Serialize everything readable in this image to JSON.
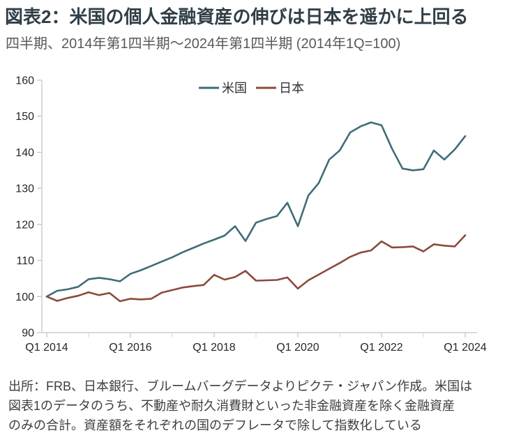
{
  "header": {
    "title": "図表2：米国の個人金融資産の伸びは日本を遥かに上回る",
    "subtitle": "四半期、2014年第1四半期～2024年第1四半期 (2014年1Q=100)"
  },
  "chart_data": {
    "type": "line",
    "title": "",
    "xlabel": "",
    "ylabel": "",
    "ylim": [
      90,
      160
    ],
    "y_ticks": [
      90,
      100,
      110,
      120,
      130,
      140,
      150,
      160
    ],
    "grid": false,
    "legend_position": "top-center",
    "x_quarters": [
      "2014Q1",
      "2014Q2",
      "2014Q3",
      "2014Q4",
      "2015Q1",
      "2015Q2",
      "2015Q3",
      "2015Q4",
      "2016Q1",
      "2016Q2",
      "2016Q3",
      "2016Q4",
      "2017Q1",
      "2017Q2",
      "2017Q3",
      "2017Q4",
      "2018Q1",
      "2018Q2",
      "2018Q3",
      "2018Q4",
      "2019Q1",
      "2019Q2",
      "2019Q3",
      "2019Q4",
      "2020Q1",
      "2020Q2",
      "2020Q3",
      "2020Q4",
      "2021Q1",
      "2021Q2",
      "2021Q3",
      "2021Q4",
      "2022Q1",
      "2022Q2",
      "2022Q3",
      "2022Q4",
      "2023Q1",
      "2023Q2",
      "2023Q3",
      "2023Q4",
      "2024Q1"
    ],
    "x_ticks": [
      {
        "index": 0,
        "label": "Q1 2014"
      },
      {
        "index": 8,
        "label": "Q1 2016"
      },
      {
        "index": 16,
        "label": "Q1 2018"
      },
      {
        "index": 24,
        "label": "Q1 2020"
      },
      {
        "index": 32,
        "label": "Q1 2022"
      },
      {
        "index": 40,
        "label": "Q1 2024"
      }
    ],
    "x_minor_tick_indices": [
      4,
      12,
      20,
      28,
      36
    ],
    "series": [
      {
        "name": "米国",
        "color": "#3f6c77",
        "values": [
          100,
          101.6,
          102.0,
          102.7,
          104.8,
          105.2,
          104.8,
          104.2,
          106.3,
          107.3,
          108.5,
          109.7,
          110.9,
          112.3,
          113.5,
          114.7,
          115.8,
          116.9,
          119.5,
          115.4,
          120.5,
          121.5,
          122.3,
          126.0,
          119.5,
          128.0,
          131.5,
          138.0,
          140.5,
          145.5,
          147.2,
          148.3,
          147.5,
          141.0,
          135.5,
          135.0,
          135.3,
          140.5,
          138.0,
          140.8,
          144.5
        ]
      },
      {
        "name": "日本",
        "color": "#8a4a3d",
        "values": [
          100,
          98.8,
          99.6,
          100.2,
          101.2,
          100.4,
          101.0,
          98.7,
          99.4,
          99.2,
          99.4,
          101.1,
          101.8,
          102.5,
          102.9,
          103.2,
          106.0,
          104.7,
          105.4,
          107.1,
          104.4,
          104.5,
          104.6,
          105.3,
          102.2,
          104.5,
          106.1,
          107.7,
          109.3,
          111.0,
          112.2,
          112.8,
          115.3,
          113.6,
          113.7,
          113.9,
          112.5,
          114.5,
          114.1,
          113.9,
          117.0
        ]
      }
    ]
  },
  "footer": {
    "lines": [
      "出所：FRB、日本銀行、ブルームバーグデータよりピクテ・ジャパン作成。米国は",
      "図表1のデータのうち、不動産や耐久消費財といった非金融資産を除く金融資産",
      "のみの合計。資産額をそれぞれの国のデフレータで除して指数化している"
    ]
  },
  "colors": {
    "title": "#2f3e47",
    "subtitle": "#595959",
    "footer": "#3d3d3d",
    "axis": "#c9c9c9",
    "minor_tick": "#dcdcdc",
    "tick_label": "#262626",
    "legend_label": "#333333",
    "background": "#ffffff"
  }
}
